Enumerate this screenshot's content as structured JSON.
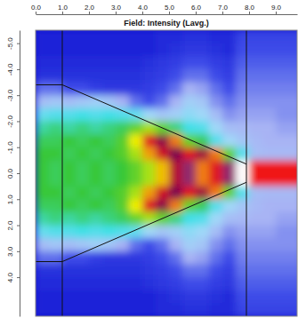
{
  "chart_data": {
    "type": "heatmap",
    "title": "Field: Intensity (Lavg.)",
    "x": [
      0.25,
      0.75,
      1.25,
      1.75,
      2.25,
      2.75,
      3.25,
      3.75,
      4.25,
      4.75,
      5.25,
      5.75,
      6.25,
      6.75,
      7.25,
      7.75,
      8.25,
      8.75,
      9.25,
      9.75
    ],
    "y": [
      -5.25,
      -4.75,
      -4.25,
      -3.75,
      -3.25,
      -2.75,
      -2.25,
      -1.75,
      -1.25,
      -0.75,
      -0.25,
      0.25,
      0.75,
      1.25,
      1.75,
      2.25,
      2.75,
      3.25,
      3.75,
      4.25,
      4.75,
      5.25
    ],
    "z": [
      [
        0.02,
        0.02,
        0.02,
        0.02,
        0.02,
        0.02,
        0.02,
        0.02,
        0.02,
        0.03,
        0.03,
        0.04,
        0.04,
        0.03,
        0.03,
        0.07,
        0.07,
        0.07,
        0.07,
        0.07
      ],
      [
        0.02,
        0.02,
        0.02,
        0.02,
        0.02,
        0.02,
        0.02,
        0.02,
        0.02,
        0.03,
        0.04,
        0.05,
        0.05,
        0.04,
        0.03,
        0.08,
        0.08,
        0.08,
        0.08,
        0.08
      ],
      [
        0.03,
        0.03,
        0.03,
        0.03,
        0.03,
        0.03,
        0.03,
        0.03,
        0.04,
        0.05,
        0.06,
        0.08,
        0.08,
        0.06,
        0.05,
        0.09,
        0.09,
        0.09,
        0.09,
        0.09
      ],
      [
        0.04,
        0.04,
        0.04,
        0.04,
        0.04,
        0.04,
        0.04,
        0.04,
        0.05,
        0.06,
        0.08,
        0.1,
        0.1,
        0.08,
        0.06,
        0.1,
        0.1,
        0.1,
        0.1,
        0.1
      ],
      [
        0.1,
        0.1,
        0.08,
        0.08,
        0.06,
        0.05,
        0.05,
        0.05,
        0.06,
        0.08,
        0.1,
        0.14,
        0.13,
        0.1,
        0.08,
        0.11,
        0.11,
        0.11,
        0.11,
        0.11
      ],
      [
        0.16,
        0.18,
        0.16,
        0.18,
        0.2,
        0.18,
        0.14,
        0.1,
        0.08,
        0.1,
        0.14,
        0.2,
        0.18,
        0.12,
        0.1,
        0.12,
        0.12,
        0.12,
        0.12,
        0.12
      ],
      [
        0.28,
        0.3,
        0.3,
        0.32,
        0.3,
        0.32,
        0.3,
        0.28,
        0.22,
        0.18,
        0.2,
        0.24,
        0.22,
        0.16,
        0.12,
        0.13,
        0.13,
        0.13,
        0.12,
        0.12
      ],
      [
        0.36,
        0.38,
        0.36,
        0.38,
        0.36,
        0.38,
        0.4,
        0.45,
        0.5,
        0.45,
        0.38,
        0.32,
        0.3,
        0.22,
        0.16,
        0.15,
        0.14,
        0.14,
        0.13,
        0.13
      ],
      [
        0.4,
        0.4,
        0.42,
        0.4,
        0.42,
        0.4,
        0.44,
        0.55,
        0.7,
        0.8,
        0.62,
        0.45,
        0.4,
        0.3,
        0.22,
        0.18,
        0.15,
        0.14,
        0.14,
        0.14
      ],
      [
        0.42,
        0.42,
        0.4,
        0.42,
        0.4,
        0.42,
        0.44,
        0.5,
        0.6,
        0.72,
        0.82,
        0.7,
        0.78,
        0.62,
        0.45,
        0.3,
        0.16,
        0.15,
        0.15,
        0.15
      ],
      [
        0.42,
        0.4,
        0.42,
        0.4,
        0.42,
        0.4,
        0.42,
        0.45,
        0.5,
        0.58,
        0.75,
        0.85,
        0.62,
        0.7,
        0.85,
        1.0,
        0.68,
        0.68,
        0.68,
        0.68
      ],
      [
        0.42,
        0.4,
        0.42,
        0.4,
        0.42,
        0.4,
        0.42,
        0.45,
        0.5,
        0.58,
        0.75,
        0.85,
        0.62,
        0.7,
        0.85,
        1.0,
        0.68,
        0.68,
        0.68,
        0.68
      ],
      [
        0.42,
        0.42,
        0.4,
        0.42,
        0.4,
        0.42,
        0.44,
        0.5,
        0.6,
        0.72,
        0.82,
        0.7,
        0.78,
        0.62,
        0.45,
        0.3,
        0.16,
        0.15,
        0.15,
        0.15
      ],
      [
        0.4,
        0.4,
        0.42,
        0.4,
        0.42,
        0.4,
        0.44,
        0.55,
        0.7,
        0.8,
        0.62,
        0.45,
        0.4,
        0.3,
        0.22,
        0.18,
        0.15,
        0.14,
        0.14,
        0.14
      ],
      [
        0.36,
        0.38,
        0.36,
        0.38,
        0.36,
        0.38,
        0.4,
        0.45,
        0.5,
        0.45,
        0.38,
        0.32,
        0.3,
        0.22,
        0.16,
        0.15,
        0.14,
        0.14,
        0.13,
        0.13
      ],
      [
        0.28,
        0.3,
        0.3,
        0.32,
        0.3,
        0.32,
        0.3,
        0.28,
        0.22,
        0.18,
        0.2,
        0.24,
        0.22,
        0.16,
        0.12,
        0.13,
        0.13,
        0.13,
        0.12,
        0.12
      ],
      [
        0.16,
        0.18,
        0.16,
        0.18,
        0.2,
        0.18,
        0.14,
        0.1,
        0.08,
        0.1,
        0.14,
        0.2,
        0.18,
        0.12,
        0.1,
        0.12,
        0.12,
        0.12,
        0.12,
        0.12
      ],
      [
        0.1,
        0.1,
        0.08,
        0.08,
        0.06,
        0.05,
        0.05,
        0.05,
        0.06,
        0.08,
        0.1,
        0.14,
        0.13,
        0.1,
        0.08,
        0.11,
        0.11,
        0.11,
        0.11,
        0.11
      ],
      [
        0.04,
        0.04,
        0.04,
        0.04,
        0.04,
        0.04,
        0.04,
        0.04,
        0.05,
        0.06,
        0.08,
        0.1,
        0.1,
        0.08,
        0.06,
        0.1,
        0.1,
        0.1,
        0.1,
        0.1
      ],
      [
        0.03,
        0.03,
        0.03,
        0.03,
        0.03,
        0.03,
        0.03,
        0.03,
        0.04,
        0.05,
        0.06,
        0.08,
        0.08,
        0.06,
        0.05,
        0.09,
        0.09,
        0.09,
        0.09,
        0.09
      ],
      [
        0.02,
        0.02,
        0.02,
        0.02,
        0.02,
        0.02,
        0.02,
        0.02,
        0.02,
        0.03,
        0.04,
        0.05,
        0.05,
        0.04,
        0.03,
        0.08,
        0.08,
        0.08,
        0.08,
        0.08
      ],
      [
        0.02,
        0.02,
        0.02,
        0.02,
        0.02,
        0.02,
        0.02,
        0.02,
        0.02,
        0.03,
        0.03,
        0.04,
        0.04,
        0.03,
        0.03,
        0.07,
        0.07,
        0.07,
        0.07,
        0.07
      ]
    ],
    "zlim": [
      0,
      1
    ],
    "xlim": [
      0,
      9.8
    ],
    "ylim": [
      -5.5,
      5.5
    ],
    "xticks": [
      {
        "value": 0,
        "label": "0.0"
      },
      {
        "value": 1,
        "label": "1.0"
      },
      {
        "value": 2,
        "label": "2.0"
      },
      {
        "value": 3,
        "label": "3.0"
      },
      {
        "value": 4,
        "label": "4.0"
      },
      {
        "value": 5,
        "label": "5.0"
      },
      {
        "value": 6,
        "label": "6.0"
      },
      {
        "value": 7,
        "label": "7.0"
      },
      {
        "value": 8,
        "label": "8.0"
      },
      {
        "value": 9,
        "label": "9.0"
      }
    ],
    "yticks": [
      {
        "value": -5,
        "label": "-5.0"
      },
      {
        "value": -4,
        "label": "-4.0"
      },
      {
        "value": -3,
        "label": "-3.0"
      },
      {
        "value": -2,
        "label": "-2.0"
      },
      {
        "value": -1,
        "label": "-1.0"
      },
      {
        "value": 0,
        "label": "0.0"
      },
      {
        "value": 1,
        "label": "1.0"
      },
      {
        "value": 2,
        "label": "2.0"
      },
      {
        "value": 3,
        "label": "3.0"
      },
      {
        "value": 4,
        "label": "4.0"
      }
    ],
    "structure_lines": [
      {
        "x": [
          1.0,
          1.0
        ],
        "y": [
          -5.5,
          5.5
        ]
      },
      {
        "x": [
          7.9,
          7.9
        ],
        "y": [
          -5.5,
          5.5
        ]
      },
      {
        "x": [
          0,
          1.0
        ],
        "y": [
          -3.4,
          -3.4
        ]
      },
      {
        "x": [
          0,
          1.0
        ],
        "y": [
          3.4,
          3.4
        ]
      },
      {
        "x": [
          1.0,
          7.9
        ],
        "y": [
          -3.4,
          -0.35
        ]
      },
      {
        "x": [
          1.0,
          7.9
        ],
        "y": [
          3.4,
          0.35
        ]
      }
    ]
  }
}
